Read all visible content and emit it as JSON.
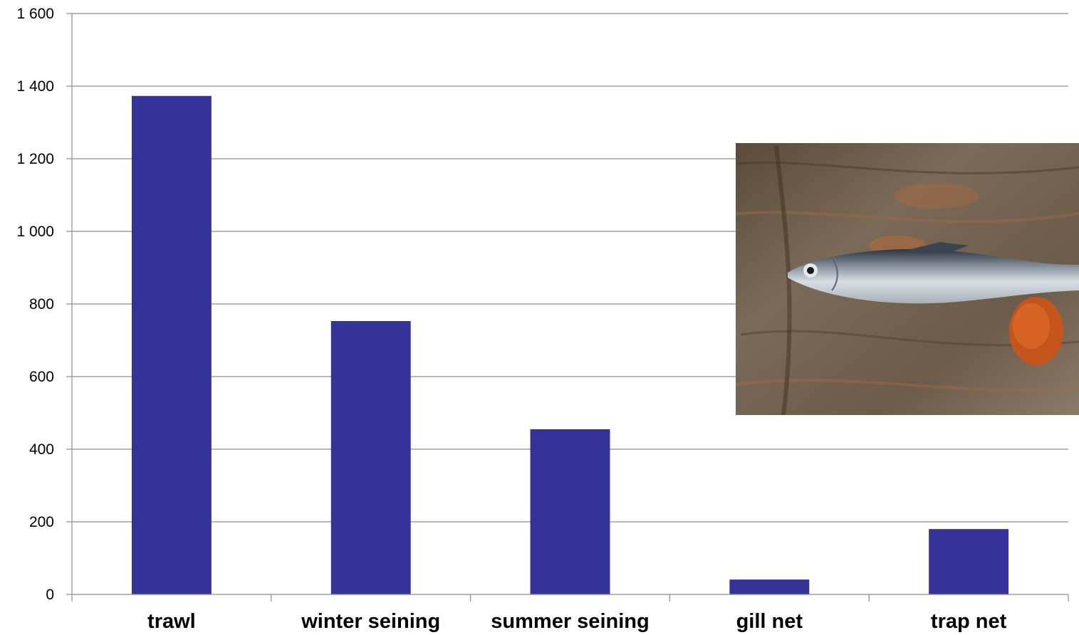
{
  "chart_data": {
    "type": "bar",
    "title": "",
    "xlabel": "",
    "ylabel": "",
    "categories": [
      "trawl",
      "winter seining",
      "summer seining",
      "gill net",
      "trap net"
    ],
    "values": [
      1373,
      753,
      455,
      41,
      180
    ],
    "ylim": [
      0,
      1600
    ],
    "yticks": [
      0,
      200,
      400,
      600,
      800,
      1000,
      1200,
      1400,
      1600
    ],
    "ytick_labels": [
      "0",
      "200",
      "400",
      "600",
      "800",
      "1 000",
      "1 200",
      "1 400",
      "1 600"
    ],
    "grid": true,
    "legend": "none",
    "bar_color": "#333399",
    "inset_photo": "fish-photo"
  }
}
